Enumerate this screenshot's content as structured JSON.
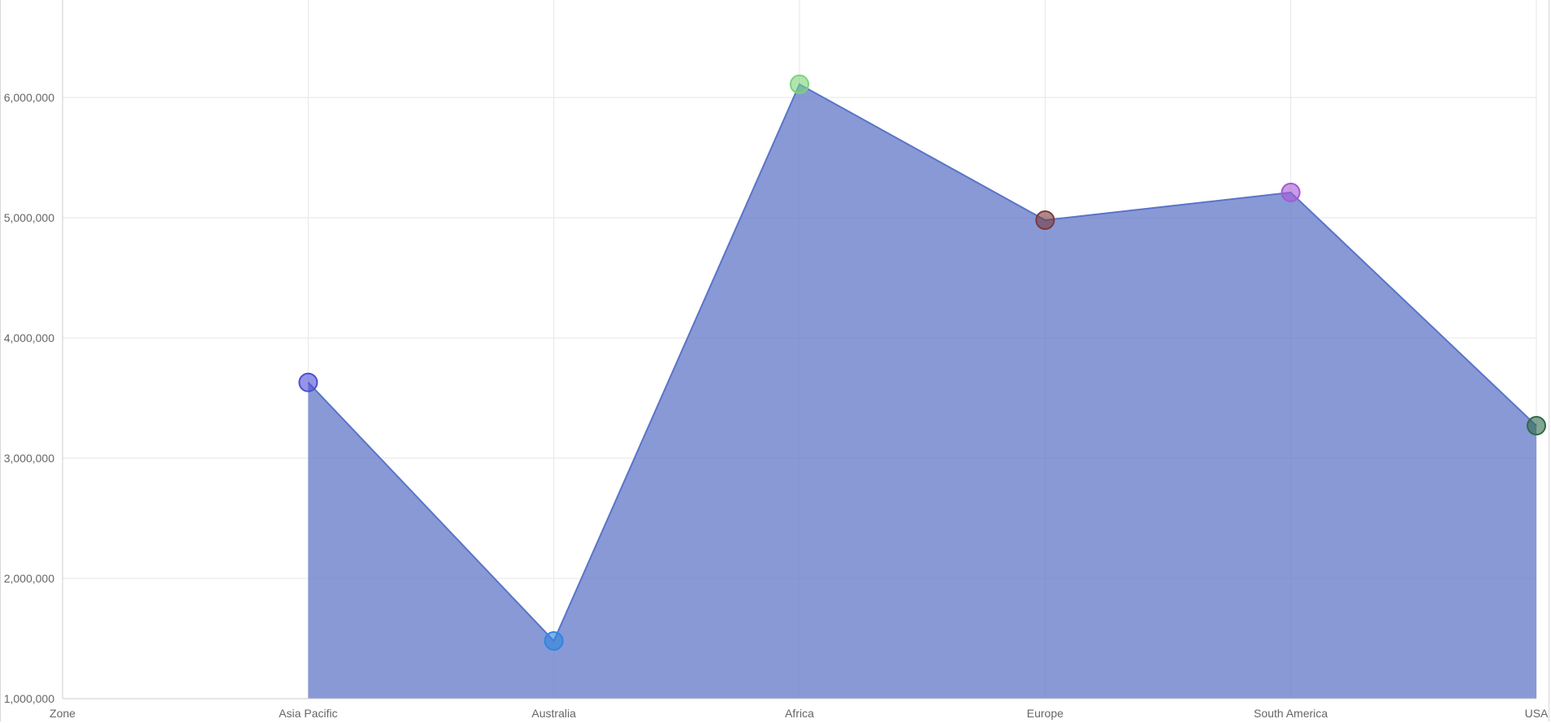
{
  "chart_data": {
    "type": "area",
    "categories": [
      "Zone",
      "Asia Pacific",
      "Australia",
      "Africa",
      "Europe",
      "South America",
      "USA"
    ],
    "series": [
      {
        "values": [
          null,
          3630000,
          1480000,
          6110000,
          4980000,
          5210000,
          3270000
        ],
        "fill_color": "#6a80cc",
        "line_color": "#5a74c8",
        "point_colors": [
          null,
          "#4f4fd6",
          "#2f86e0",
          "#7cd37c",
          "#7a3a3a",
          "#a55ad6",
          "#2f6a4a"
        ]
      }
    ],
    "yticks": [
      "1,000,000",
      "2,000,000",
      "3,000,000",
      "4,000,000",
      "5,000,000",
      "6,000,000"
    ],
    "ytick_values": [
      1000000,
      2000000,
      3000000,
      4000000,
      5000000,
      6000000
    ],
    "ylim": [
      1000000,
      6800000
    ],
    "xlabel": "",
    "ylabel": "",
    "grid": true
  }
}
